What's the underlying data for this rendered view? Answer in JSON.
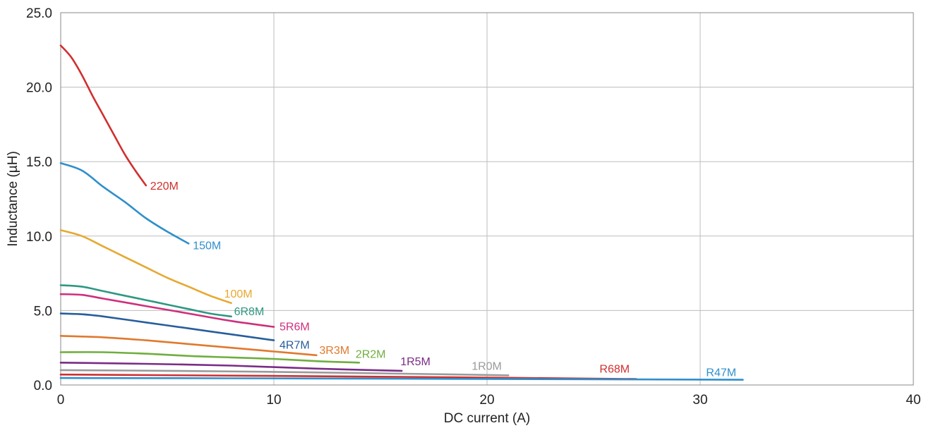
{
  "chart_data": {
    "type": "line",
    "title": "",
    "xlabel": "DC current (A)",
    "ylabel": "Inductance (µH)",
    "xlim": [
      0,
      40
    ],
    "ylim": [
      0,
      25
    ],
    "x_ticks": [
      0,
      10,
      20,
      30,
      40
    ],
    "x_tick_labels": [
      "0",
      "10",
      "20",
      "30",
      "40"
    ],
    "y_ticks": [
      0,
      5,
      10,
      15,
      20,
      25
    ],
    "y_tick_labels": [
      "0.0",
      "5.0",
      "10.0",
      "15.0",
      "20.0",
      "25.0"
    ],
    "grid": true,
    "legend": "inline labels at line ends",
    "series": [
      {
        "name": "220M",
        "color": "#d12f2e",
        "x": [
          0,
          0.5,
          1,
          1.5,
          2,
          2.5,
          3,
          3.5,
          4
        ],
        "y": [
          22.8,
          22.0,
          20.8,
          19.4,
          18.1,
          16.8,
          15.5,
          14.4,
          13.4
        ]
      },
      {
        "name": "150M",
        "color": "#2f8fcb",
        "x": [
          0,
          1,
          2,
          3,
          4,
          5,
          6
        ],
        "y": [
          14.9,
          14.4,
          13.3,
          12.3,
          11.2,
          10.3,
          9.5
        ]
      },
      {
        "name": "100M",
        "color": "#e7a830",
        "x": [
          0,
          1,
          2,
          3,
          4,
          5,
          6,
          7,
          8
        ],
        "y": [
          10.4,
          10.0,
          9.3,
          8.6,
          7.9,
          7.2,
          6.6,
          6.0,
          5.5
        ]
      },
      {
        "name": "6R8M",
        "color": "#2e9882",
        "x": [
          0,
          1,
          2,
          3,
          4,
          5,
          6,
          7,
          8
        ],
        "y": [
          6.7,
          6.6,
          6.3,
          6.0,
          5.7,
          5.4,
          5.1,
          4.8,
          4.6
        ]
      },
      {
        "name": "5R6M",
        "color": "#cf2f7d",
        "x": [
          0,
          1,
          2,
          4,
          6,
          8,
          10
        ],
        "y": [
          6.1,
          6.05,
          5.8,
          5.3,
          4.8,
          4.3,
          3.9
        ]
      },
      {
        "name": "4R7M",
        "color": "#275e9c",
        "x": [
          0,
          1,
          2,
          4,
          6,
          8,
          10
        ],
        "y": [
          4.8,
          4.75,
          4.6,
          4.2,
          3.8,
          3.4,
          3.0
        ]
      },
      {
        "name": "3R3M",
        "color": "#e0792e",
        "x": [
          0,
          2,
          4,
          6,
          8,
          10,
          12
        ],
        "y": [
          3.3,
          3.2,
          3.0,
          2.75,
          2.5,
          2.25,
          2.0
        ]
      },
      {
        "name": "2R2M",
        "color": "#6fae3f",
        "x": [
          0,
          2,
          4,
          6,
          8,
          10,
          12,
          14
        ],
        "y": [
          2.2,
          2.2,
          2.1,
          1.95,
          1.85,
          1.75,
          1.6,
          1.5
        ]
      },
      {
        "name": "1R5M",
        "color": "#7a2c86",
        "x": [
          0,
          4,
          8,
          12,
          16
        ],
        "y": [
          1.5,
          1.42,
          1.3,
          1.1,
          0.95
        ]
      },
      {
        "name": "1R0M",
        "color": "#9a9a9a",
        "x": [
          0,
          5,
          10,
          15,
          21
        ],
        "y": [
          1.0,
          0.95,
          0.88,
          0.78,
          0.65
        ]
      },
      {
        "name": "R68M",
        "color": "#d12f2e",
        "x": [
          0,
          9,
          18,
          27
        ],
        "y": [
          0.7,
          0.62,
          0.52,
          0.4
        ]
      },
      {
        "name": "R47M",
        "color": "#2f8fcb",
        "x": [
          0,
          8,
          16,
          24,
          32
        ],
        "y": [
          0.47,
          0.45,
          0.42,
          0.39,
          0.35
        ]
      }
    ]
  }
}
